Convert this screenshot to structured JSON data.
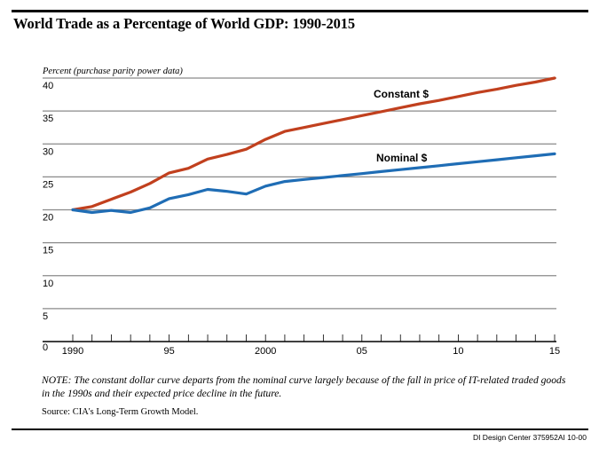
{
  "title": "World Trade as a Percentage of World GDP: 1990-2015",
  "note": "NOTE: The constant dollar curve departs from the nominal curve largely because of the fall in price of IT-related traded goods in the 1990s and their expected price decline in the future.",
  "source": "Source: CIA's Long-Term Growth Model.",
  "credit": "DI Design Center  375952AI 10-00",
  "colors": {
    "constant": "#C1401E",
    "nominal": "#1F6DB5",
    "grid": "#8a8a8a"
  },
  "chart_data": {
    "type": "line",
    "title": "World Trade as a Percentage of World GDP: 1990-2015",
    "ylabel": "Percent (purchase parity power data)",
    "xlabel": "",
    "ylim": [
      0,
      40
    ],
    "xlim": [
      1990,
      2015
    ],
    "y_ticks": [
      0,
      5,
      10,
      15,
      20,
      25,
      30,
      35,
      40
    ],
    "y_tick_labels": [
      "0",
      "5",
      "10",
      "15",
      "20",
      "25",
      "30",
      "35",
      "40"
    ],
    "x_ticks_major": [
      1990,
      1995,
      2000,
      2005,
      2010,
      2015
    ],
    "x_tick_labels": [
      "1990",
      "95",
      "2000",
      "05",
      "10",
      "15"
    ],
    "grid": "horizontal",
    "x": [
      1990,
      1991,
      1992,
      1993,
      1994,
      1995,
      1996,
      1997,
      1998,
      1999,
      2000,
      2001,
      2002,
      2003,
      2004,
      2005,
      2006,
      2007,
      2008,
      2009,
      2010,
      2011,
      2012,
      2013,
      2014,
      2015
    ],
    "series": [
      {
        "name": "Constant $",
        "values": [
          20.0,
          20.5,
          21.6,
          22.7,
          24.0,
          25.6,
          26.3,
          27.7,
          28.4,
          29.2,
          30.7,
          31.9,
          32.5,
          33.1,
          33.7,
          34.3,
          34.9,
          35.5,
          36.1,
          36.6,
          37.2,
          37.8,
          38.3,
          38.9,
          39.4,
          40.0
        ],
        "label_position": "above line, right-center"
      },
      {
        "name": "Nominal $",
        "values": [
          20.0,
          19.6,
          19.9,
          19.6,
          20.3,
          21.7,
          22.3,
          23.1,
          22.8,
          22.4,
          23.6,
          24.3,
          24.6,
          24.9,
          25.2,
          25.5,
          25.8,
          26.1,
          26.4,
          26.7,
          27.0,
          27.3,
          27.6,
          27.9,
          28.2,
          28.5
        ],
        "label_position": "above line, right-center"
      }
    ]
  }
}
